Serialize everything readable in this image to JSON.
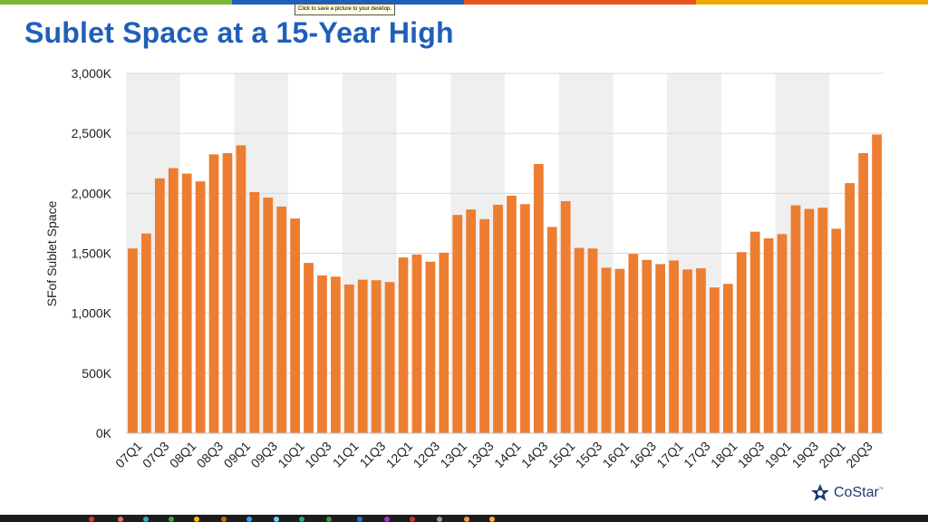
{
  "page": {
    "title": "Sublet Space at a 15-Year High",
    "tooltip": "Click to save a picture to your desktop.",
    "logo_text": "CoStar",
    "logo_sup": "™"
  },
  "colors": {
    "bar": "#ed7d31",
    "title": "#1f5fb8",
    "band": "#efefef",
    "grid": "#d9d9d9",
    "topbar": [
      "#7cb82f",
      "#1f5fb8",
      "#e8541e",
      "#f2a900"
    ]
  },
  "chart_data": {
    "type": "bar",
    "title": "Sublet Space at a 15-Year High",
    "xlabel": "",
    "ylabel": "SFof Sublet Space",
    "ylim": [
      0,
      3000
    ],
    "yticks": [
      0,
      500,
      1000,
      1500,
      2000,
      2500,
      3000
    ],
    "ytick_labels": [
      "0K",
      "500K",
      "1,000K",
      "1,500K",
      "2,000K",
      "2,500K",
      "3,000K"
    ],
    "grid": true,
    "xtick_labels": [
      "07Q1",
      "07Q3",
      "08Q1",
      "08Q3",
      "09Q1",
      "09Q3",
      "10Q1",
      "10Q3",
      "11Q1",
      "11Q3",
      "12Q1",
      "12Q3",
      "13Q1",
      "13Q3",
      "14Q1",
      "14Q3",
      "15Q1",
      "15Q3",
      "16Q1",
      "16Q3",
      "17Q1",
      "17Q3",
      "18Q1",
      "18Q3",
      "19Q1",
      "19Q3",
      "20Q1",
      "20Q3"
    ],
    "categories": [
      "07Q1",
      "07Q2",
      "07Q3",
      "07Q4",
      "08Q1",
      "08Q2",
      "08Q3",
      "08Q4",
      "09Q1",
      "09Q2",
      "09Q3",
      "09Q4",
      "10Q1",
      "10Q2",
      "10Q3",
      "10Q4",
      "11Q1",
      "11Q2",
      "11Q3",
      "11Q4",
      "12Q1",
      "12Q2",
      "12Q3",
      "12Q4",
      "13Q1",
      "13Q2",
      "13Q3",
      "13Q4",
      "14Q1",
      "14Q2",
      "14Q3",
      "14Q4",
      "15Q1",
      "15Q2",
      "15Q3",
      "15Q4",
      "16Q1",
      "16Q2",
      "16Q3",
      "16Q4",
      "17Q1",
      "17Q2",
      "17Q3",
      "17Q4",
      "18Q1",
      "18Q2",
      "18Q3",
      "18Q4",
      "19Q1",
      "19Q2",
      "19Q3",
      "19Q4",
      "20Q1",
      "20Q2",
      "20Q3",
      "20Q4"
    ],
    "values": [
      1540,
      1665,
      2125,
      2210,
      2165,
      2100,
      2325,
      2335,
      2400,
      2010,
      1965,
      1890,
      1790,
      1420,
      1315,
      1305,
      1240,
      1280,
      1275,
      1260,
      1465,
      1490,
      1430,
      1505,
      1820,
      1865,
      1785,
      1905,
      1980,
      1910,
      2245,
      1720,
      1935,
      1545,
      1540,
      1380,
      1370,
      1495,
      1445,
      1410,
      1440,
      1365,
      1375,
      1215,
      1245,
      1510,
      1680,
      1625,
      1660,
      1900,
      1870,
      1880,
      1705,
      2085,
      2335,
      2490
    ]
  }
}
